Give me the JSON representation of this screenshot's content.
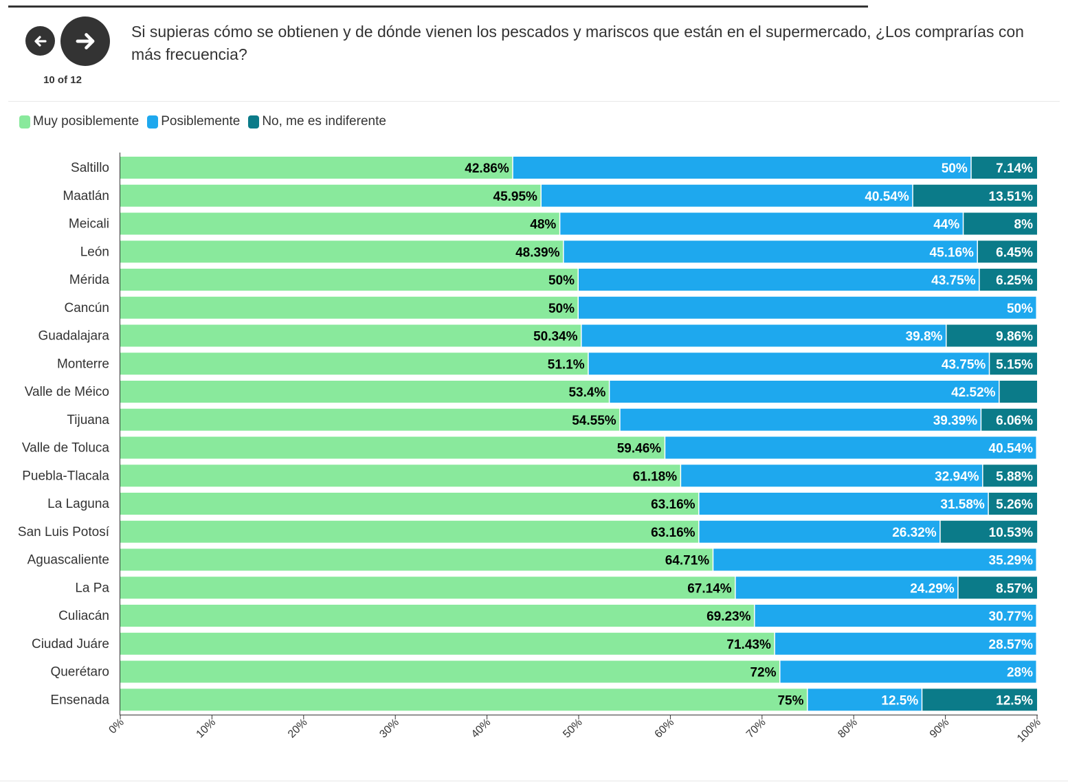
{
  "nav": {
    "counter": "10 of 12",
    "prev_icon": "arrow-left-icon",
    "next_icon": "arrow-right-icon"
  },
  "colors": {
    "muy": "#89e99c",
    "posible": "#1ea8ee",
    "no": "#0b7b89",
    "axis": "#333333",
    "label_dark": "#000000",
    "label_light": "#ffffff"
  },
  "chart_data": {
    "type": "bar",
    "orientation": "horizontal",
    "stacked": true,
    "title": "Si supieras cómo se obtienen y de dónde vienen los pescados y mariscos que están en el supermercado, ¿Los comprarías con más frecuencia?",
    "legend_position": "top-left",
    "categories": [
      "Saltillo",
      "Maatlán",
      "Meicali",
      "León",
      "Mérida",
      "Cancún",
      "Guadalajara",
      "Monterre",
      "Valle de Méico",
      "Tijuana",
      "Valle de Toluca",
      "Puebla-Tlacala",
      "La Laguna",
      "San Luis Potosí",
      "Aguascaliente",
      "La Pa",
      "Culiacán",
      "Ciudad Juáre",
      "Querétaro",
      "Ensenada"
    ],
    "series": [
      {
        "name": "Muy posiblemente",
        "values": [
          42.86,
          45.95,
          48,
          48.39,
          50,
          50,
          50.34,
          51.1,
          53.4,
          54.55,
          59.46,
          61.18,
          63.16,
          63.16,
          64.71,
          67.14,
          69.23,
          71.43,
          72,
          75
        ],
        "labels": [
          "42.86%",
          "45.95%",
          "48%",
          "48.39%",
          "50%",
          "50%",
          "50.34%",
          "51.1%",
          "53.4%",
          "54.55%",
          "59.46%",
          "61.18%",
          "63.16%",
          "63.16%",
          "64.71%",
          "67.14%",
          "69.23%",
          "71.43%",
          "72%",
          "75%"
        ]
      },
      {
        "name": "Posiblemente",
        "values": [
          50,
          40.54,
          44,
          45.16,
          43.75,
          50,
          39.8,
          43.75,
          42.52,
          39.39,
          40.54,
          32.94,
          31.58,
          26.32,
          35.29,
          24.29,
          30.77,
          28.57,
          28,
          12.5
        ],
        "labels": [
          "50%",
          "40.54%",
          "44%",
          "45.16%",
          "43.75%",
          "50%",
          "39.8%",
          "43.75%",
          "42.52%",
          "39.39%",
          "40.54%",
          "32.94%",
          "31.58%",
          "26.32%",
          "35.29%",
          "24.29%",
          "30.77%",
          "28.57%",
          "28%",
          "12.5%"
        ]
      },
      {
        "name": "No, me es indiferente",
        "values": [
          7.14,
          13.51,
          8,
          6.45,
          6.25,
          0,
          9.86,
          5.15,
          4.08,
          6.06,
          0,
          5.88,
          5.26,
          10.53,
          0,
          8.57,
          0,
          0,
          0,
          12.5
        ],
        "labels": [
          "7.14%",
          "13.51%",
          "8%",
          "6.45%",
          "6.25%",
          "",
          "9.86%",
          "5.15%",
          "",
          "6.06%",
          "",
          "5.88%",
          "5.26%",
          "10.53%",
          "",
          "8.57%",
          "",
          "",
          "",
          "12.5%"
        ]
      }
    ],
    "xlim": [
      0,
      100
    ],
    "xticks": [
      "0%",
      "10%",
      "20%",
      "30%",
      "40%",
      "50%",
      "60%",
      "70%",
      "80%",
      "90%",
      "100%"
    ],
    "xlabel": "",
    "ylabel": "",
    "grid": false
  }
}
